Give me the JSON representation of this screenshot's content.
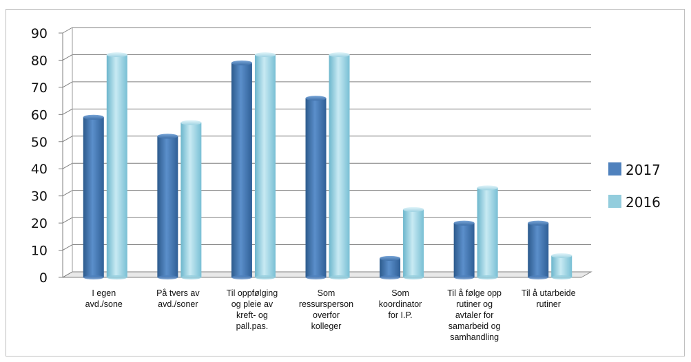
{
  "chart_data": {
    "type": "bar",
    "categories": [
      [
        "I egen",
        "avd./sone"
      ],
      [
        "På tvers av",
        "avd./soner"
      ],
      [
        "Til oppfølging",
        "og pleie av",
        "kreft- og",
        "pall.pas."
      ],
      [
        "Som",
        "ressursperson",
        "overfor",
        "kolleger"
      ],
      [
        "Som",
        "koordinator",
        "for I.P."
      ],
      [
        "Til å følge opp",
        "rutiner og",
        "avtaler for",
        "samarbeid og",
        "samhandling"
      ],
      [
        "Til å utarbeide",
        "rutiner"
      ]
    ],
    "series": [
      {
        "name": "2017",
        "values": [
          59,
          52,
          79,
          66,
          7,
          20,
          20
        ],
        "color": "#4f81bd"
      },
      {
        "name": "2016",
        "values": [
          82,
          57,
          82,
          82,
          25,
          33,
          8
        ],
        "color": "#93cddd"
      }
    ],
    "ylim": [
      0,
      90
    ],
    "yticks": [
      "0",
      "10",
      "20",
      "30",
      "40",
      "50",
      "60",
      "70",
      "80",
      "90"
    ],
    "grid": true,
    "legend_position": "right"
  }
}
